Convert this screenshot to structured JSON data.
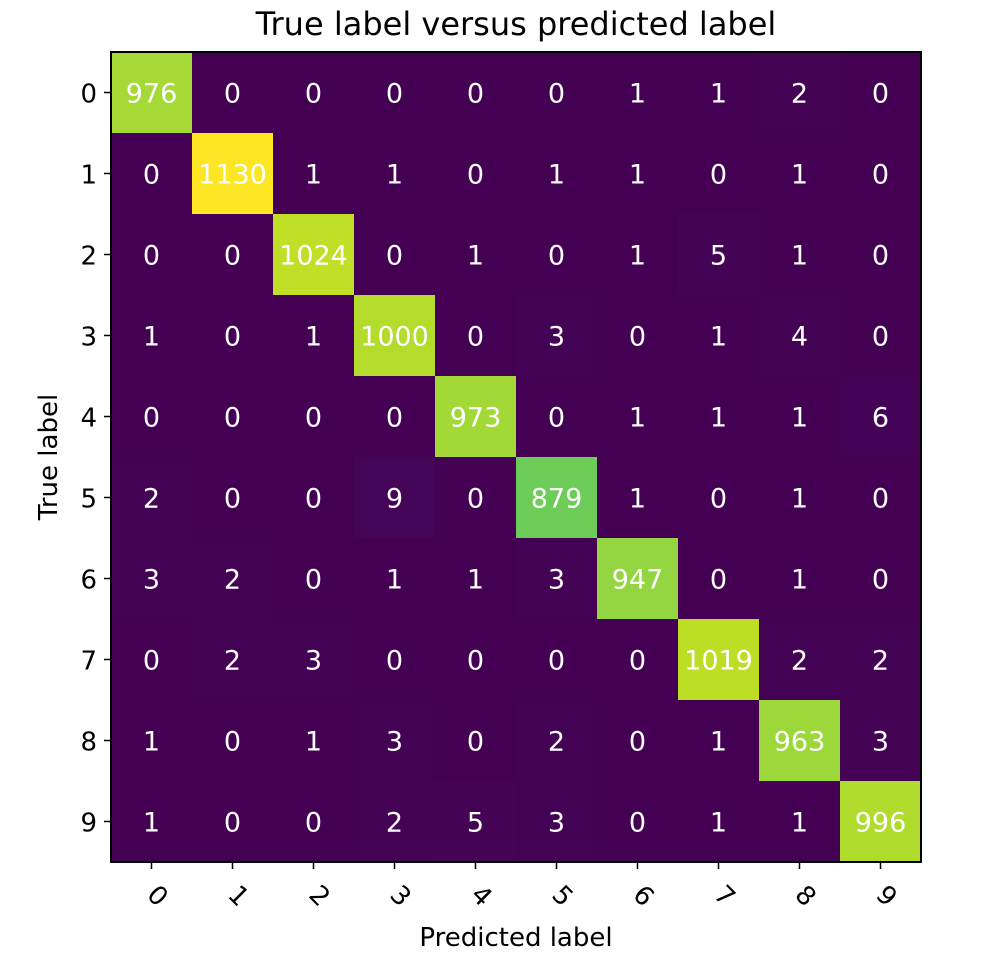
{
  "chart_data": {
    "type": "heatmap",
    "title": "True label versus predicted label",
    "xlabel": "Predicted label",
    "ylabel": "True label",
    "x_categories": [
      "0",
      "1",
      "2",
      "3",
      "4",
      "5",
      "6",
      "7",
      "8",
      "9"
    ],
    "y_categories": [
      "0",
      "1",
      "2",
      "3",
      "4",
      "5",
      "6",
      "7",
      "8",
      "9"
    ],
    "colormap": "viridis",
    "value_range": [
      0,
      1130
    ],
    "text_color_on_dark": "#ffffff",
    "text_color_on_light": "#ffffff",
    "values": [
      [
        976,
        0,
        0,
        0,
        0,
        0,
        1,
        1,
        2,
        0
      ],
      [
        0,
        1130,
        1,
        1,
        0,
        1,
        1,
        0,
        1,
        0
      ],
      [
        0,
        0,
        1024,
        0,
        1,
        0,
        1,
        5,
        1,
        0
      ],
      [
        1,
        0,
        1,
        1000,
        0,
        3,
        0,
        1,
        4,
        0
      ],
      [
        0,
        0,
        0,
        0,
        973,
        0,
        1,
        1,
        1,
        6
      ],
      [
        2,
        0,
        0,
        9,
        0,
        879,
        1,
        0,
        1,
        0
      ],
      [
        3,
        2,
        0,
        1,
        1,
        3,
        947,
        0,
        1,
        0
      ],
      [
        0,
        2,
        3,
        0,
        0,
        0,
        0,
        1019,
        2,
        2
      ],
      [
        1,
        0,
        1,
        3,
        0,
        2,
        0,
        1,
        963,
        3
      ],
      [
        1,
        0,
        0,
        2,
        5,
        3,
        0,
        1,
        1,
        996
      ]
    ]
  }
}
